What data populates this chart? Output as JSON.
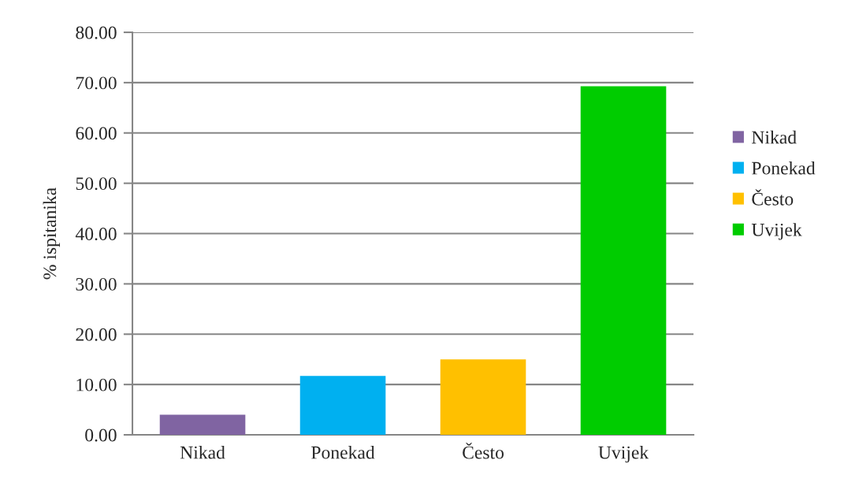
{
  "chart_data": {
    "type": "bar",
    "ylabel": "% ispitanika",
    "categories": [
      "Nikad",
      "Ponekad",
      "Često",
      "Uvijek"
    ],
    "series": [
      {
        "name": "Nikad",
        "color": "#8064a2",
        "values": [
          4.0,
          null,
          null,
          null
        ]
      },
      {
        "name": "Ponekad",
        "color": "#00b0f0",
        "values": [
          null,
          11.7,
          null,
          null
        ]
      },
      {
        "name": "Često",
        "color": "#ffc000",
        "values": [
          null,
          null,
          15.0,
          null
        ]
      },
      {
        "name": "Uvijek",
        "color": "#00cc00",
        "values": [
          null,
          null,
          null,
          69.3
        ]
      }
    ],
    "stacked": true,
    "ylim": [
      0,
      80
    ],
    "yticks": [
      {
        "value": 0,
        "label": "0.00"
      },
      {
        "value": 10,
        "label": "10.00"
      },
      {
        "value": 20,
        "label": "20.00"
      },
      {
        "value": 30,
        "label": "30.00"
      },
      {
        "value": 40,
        "label": "40.00"
      },
      {
        "value": 50,
        "label": "50.00"
      },
      {
        "value": 60,
        "label": "60.00"
      },
      {
        "value": 70,
        "label": "70.00"
      },
      {
        "value": 80,
        "label": "80.00"
      }
    ],
    "grid": "y",
    "legend": "right"
  }
}
